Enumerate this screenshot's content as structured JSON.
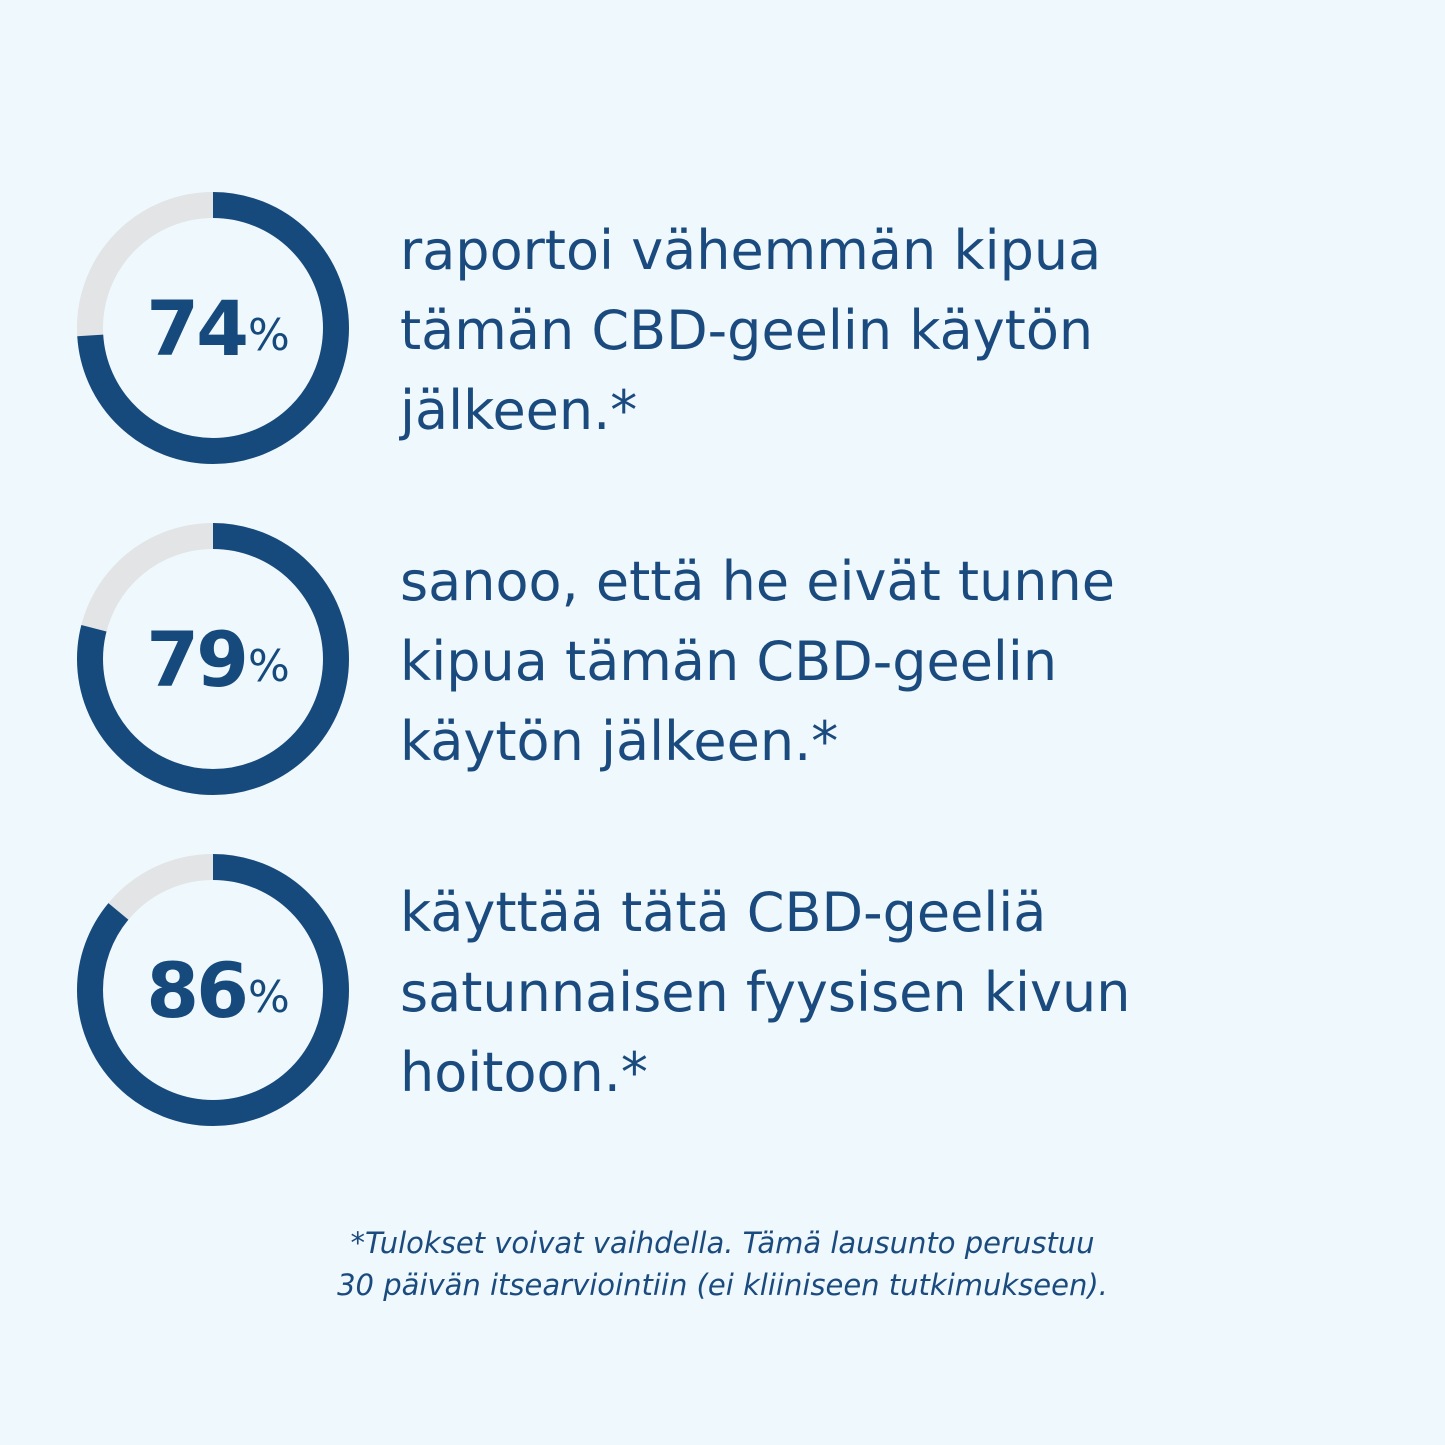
{
  "colors": {
    "background": "#eff8fc",
    "ring_fill": "#174a7c",
    "ring_track": "#e2e4e6",
    "text": "#1b4b7e"
  },
  "stats": [
    {
      "value": "74",
      "unit": "%",
      "fraction": 0.74,
      "text": "raportoi vähemmän kipua\ntämän CBD-geelin käytön\njälkeen.*"
    },
    {
      "value": "79",
      "unit": "%",
      "fraction": 0.79,
      "text": "sanoo, että he eivät tunne\nkipua tämän CBD-geelin\nkäytön jälkeen.*"
    },
    {
      "value": "86",
      "unit": "%",
      "fraction": 0.86,
      "text": "käyttää tätä CBD-geeliä\nsatunnaisen fyysisen kivun\nhoitoon.*"
    }
  ],
  "footnote": {
    "line1": "*Tulokset voivat vaihdella. Tämä lausunto perustuu",
    "line2": "30 päivän itsearviointiin (ei kliiniseen tutkimukseen)."
  }
}
